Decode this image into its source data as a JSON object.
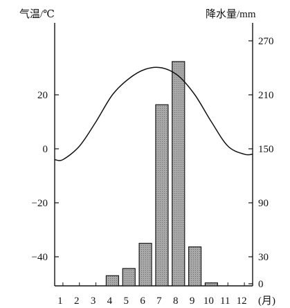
{
  "chart_data": {
    "type": "bar+line",
    "left_axis_label": "气温/℃",
    "right_axis_label": "降水量/mm",
    "x_unit_label": "(月)",
    "categories": [
      "1",
      "2",
      "3",
      "4",
      "5",
      "6",
      "7",
      "8",
      "9",
      "10",
      "11",
      "12"
    ],
    "left_ticks": [
      20,
      0,
      -20,
      -40
    ],
    "left_ylim": [
      -50,
      40
    ],
    "right_ticks": [
      270,
      210,
      150,
      90,
      30,
      0
    ],
    "right_ylim": [
      -15,
      270
    ],
    "temperature": {
      "type": "line",
      "axis": "left",
      "values": [
        -4,
        1,
        10,
        20,
        26,
        29.5,
        30,
        27,
        20,
        10,
        1,
        -2
      ]
    },
    "precipitation": {
      "type": "bar",
      "axis": "right",
      "values": [
        -12,
        -12,
        -12,
        9,
        17,
        45,
        199,
        247,
        41,
        1,
        -8,
        -10
      ]
    },
    "colors": {
      "axis": "#111111",
      "bar_fill": "#9c9c9c",
      "bar_stroke": "#1a1a1a",
      "line": "#111111"
    }
  }
}
